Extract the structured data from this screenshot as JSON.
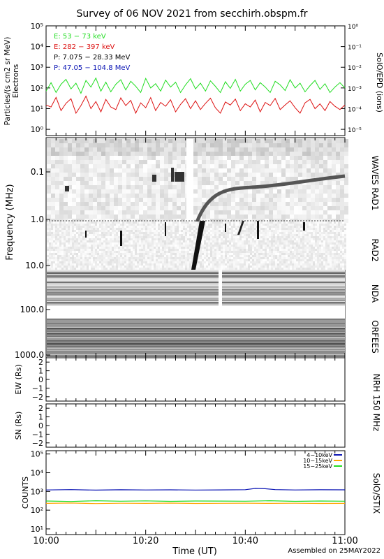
{
  "title": "Survey of 06 NOV 2021 from secchirh.obspm.fr",
  "footer": "Assembled on 25MAY2022",
  "xlabel": "Time (UT)",
  "xticks": [
    "10:00",
    "10:20",
    "10:40",
    "11:00"
  ],
  "colors": {
    "green": "#22dd22",
    "red": "#dd1111",
    "black": "#000000",
    "blue": "#0a14b4",
    "orange": "#ffa500"
  },
  "chart_data": [
    {
      "type": "line",
      "panel": "SolO/EPD particles",
      "ylabel_left": "Particles/(s cm2 sr MeV)",
      "ylabel_left2": "Electrons",
      "ylabel_right": "SolO/EPD (ions)",
      "yscale": "log",
      "ylim": [
        0.5,
        100000
      ],
      "ylim_right": [
        5e-06,
        1
      ],
      "yticks": [
        "10⁰",
        "10¹",
        "10²",
        "10³",
        "10⁴",
        "10⁵"
      ],
      "yticks_right": [
        "10⁻⁵",
        "10⁻⁴",
        "10⁻³",
        "10⁻²",
        "10⁻¹",
        "10⁰"
      ],
      "legend": [
        {
          "label": "E: 53 − 73 keV",
          "color": "#22dd22"
        },
        {
          "label": "E: 282 − 397 keV",
          "color": "#dd1111"
        },
        {
          "label": "P: 7.075 − 28.33 MeV",
          "color": "#000000"
        },
        {
          "label": "P: 47.05 − 104.8 MeV",
          "color": "#0a14b4"
        }
      ],
      "series": [
        {
          "name": "E: 53 − 73 keV",
          "color": "#22dd22",
          "x": [
            0,
            1,
            2,
            3,
            4,
            5,
            6,
            7,
            8,
            9,
            10,
            11,
            12,
            13,
            14,
            15,
            16,
            17,
            18,
            19,
            20,
            21,
            22,
            23,
            24,
            25,
            26,
            27,
            28,
            29,
            30,
            31,
            32,
            33,
            34,
            35,
            36,
            37,
            38,
            39,
            40,
            41,
            42,
            43,
            44,
            45,
            46,
            47,
            48,
            49,
            50,
            51,
            52,
            53,
            54,
            55,
            56,
            57,
            58,
            59,
            60
          ],
          "y": [
            70,
            180,
            60,
            150,
            260,
            90,
            170,
            55,
            230,
            110,
            300,
            70,
            190,
            65,
            150,
            250,
            80,
            210,
            120,
            60,
            290,
            100,
            160,
            70,
            240,
            110,
            190,
            60,
            140,
            280,
            90,
            170,
            70,
            220,
            120,
            60,
            200,
            95,
            260,
            70,
            150,
            230,
            80,
            180,
            110,
            60,
            210,
            140,
            75,
            250,
            100,
            170,
            65,
            130,
            230,
            85,
            160,
            60,
            110,
            180,
            100
          ]
        },
        {
          "name": "E: 282 − 397 keV",
          "color": "#dd1111",
          "x": [
            0,
            1,
            2,
            3,
            4,
            5,
            6,
            7,
            8,
            9,
            10,
            11,
            12,
            13,
            14,
            15,
            16,
            17,
            18,
            19,
            20,
            21,
            22,
            23,
            24,
            25,
            26,
            27,
            28,
            29,
            30,
            31,
            32,
            33,
            34,
            35,
            36,
            37,
            38,
            39,
            40,
            41,
            42,
            43,
            44,
            45,
            46,
            47,
            48,
            49,
            50,
            51,
            52,
            53,
            54,
            55,
            56,
            57,
            58,
            59,
            60
          ],
          "y": [
            15,
            12,
            35,
            8,
            18,
            30,
            6,
            14,
            40,
            10,
            22,
            7,
            28,
            12,
            9,
            33,
            14,
            25,
            6,
            19,
            11,
            34,
            8,
            20,
            13,
            27,
            7,
            16,
            30,
            10,
            24,
            9,
            18,
            32,
            11,
            6,
            21,
            15,
            29,
            8,
            17,
            12,
            26,
            7,
            20,
            14,
            31,
            9,
            15,
            24,
            11,
            6,
            19,
            28,
            10,
            17,
            8,
            22,
            13,
            9,
            15
          ]
        }
      ]
    },
    {
      "type": "heatmap",
      "panel": "WAVES / RAD1 / RAD2 / NDA / ORFEES radio spectrogram",
      "ylabel": "Frequency (MHz)",
      "yscale": "log",
      "yticks": [
        "0.1",
        "1.0",
        "10.0",
        "100.0",
        "1000.0"
      ],
      "sublabels": [
        "WAVES RAD1",
        "RAD2",
        "NDA",
        "ORFEES"
      ]
    },
    {
      "type": "line",
      "panel": "NRH 150 MHz",
      "ylabel_top": "EW (Rs)",
      "ylabel_bottom": "SN (Rs)",
      "right_label": "NRH 150 MHz",
      "yticks": [
        "2",
        "1",
        "0",
        "−1",
        "−2"
      ],
      "ylim": [
        -2.5,
        2.5
      ],
      "series": []
    },
    {
      "type": "line",
      "panel": "SolO/STIX",
      "ylabel": "COUNTS",
      "right_label": "SolO/STIX",
      "yscale": "log",
      "ylim": [
        5,
        150000
      ],
      "yticks": [
        "10¹",
        "10²",
        "10³",
        "10⁴",
        "10⁵"
      ],
      "series": [
        {
          "name": "4−10keV",
          "color": "#0a14b4",
          "x": [
            0,
            5,
            10,
            15,
            20,
            25,
            30,
            35,
            40,
            42,
            44,
            46,
            50,
            55,
            60
          ],
          "y": [
            1200,
            1250,
            1180,
            1230,
            1200,
            1220,
            1190,
            1210,
            1240,
            1450,
            1400,
            1250,
            1200,
            1230,
            1220
          ]
        },
        {
          "name": "10−15keV",
          "color": "#ffa500",
          "x": [
            0,
            5,
            10,
            15,
            20,
            25,
            30,
            35,
            40,
            45,
            50,
            55,
            60
          ],
          "y": [
            230,
            240,
            225,
            235,
            230,
            238,
            228,
            232,
            236,
            230,
            234,
            228,
            230
          ]
        },
        {
          "name": "15−25keV",
          "color": "#22dd22",
          "x": [
            0,
            5,
            10,
            15,
            20,
            25,
            30,
            35,
            40,
            45,
            50,
            55,
            60
          ],
          "y": [
            310,
            290,
            320,
            300,
            315,
            295,
            310,
            305,
            300,
            320,
            295,
            310,
            300
          ]
        }
      ]
    }
  ]
}
